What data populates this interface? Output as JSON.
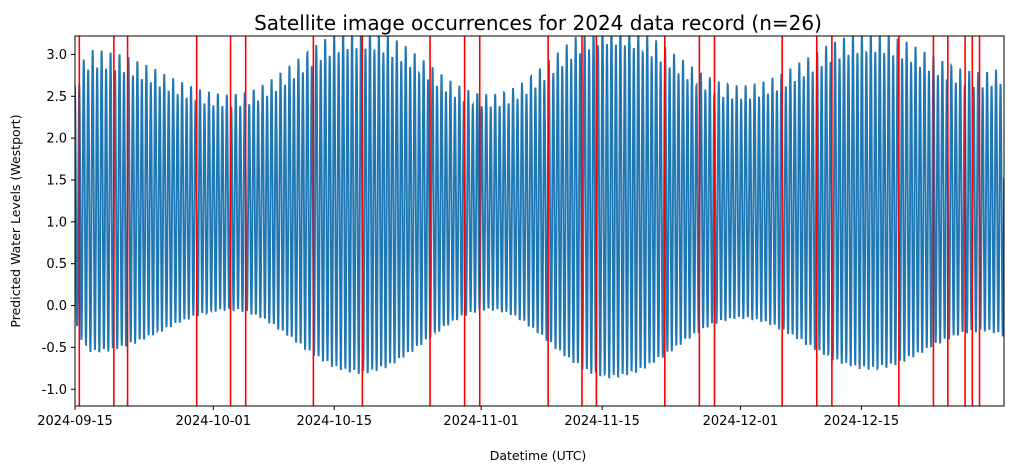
{
  "chart_data": {
    "type": "line",
    "title": "Satellite image occurrences for 2024 data record (n=26)",
    "xlabel": "Datetime (UTC)",
    "ylabel": "Predicted Water Levels (Westport)",
    "xlim": [
      "2024-09-15",
      "2024-12-31T12:00"
    ],
    "ylim": [
      -1.2,
      3.22
    ],
    "x_ticks": [
      "2024-09-15",
      "2024-10-01",
      "2024-10-15",
      "2024-11-01",
      "2024-11-15",
      "2024-12-01",
      "2024-12-15"
    ],
    "y_ticks": [
      -1.0,
      -0.5,
      0.0,
      0.5,
      1.0,
      1.5,
      2.0,
      2.5,
      3.0
    ],
    "series": [
      {
        "color": "#1f77b4",
        "mean_level": 1.2,
        "semidiurnal_period_hours": 12.42,
        "spring_tide_peaks": [
          "2024-09-17",
          "2024-10-18",
          "2024-11-16",
          "2024-12-16"
        ],
        "neap_tide_troughs": [
          "2024-10-03",
          "2024-11-02",
          "2024-12-01",
          "2024-12-29"
        ],
        "values": [
          {
            "x": "2024-09-15",
            "y": 2.3
          },
          {
            "x": "2024-09-17",
            "y": 2.75
          },
          {
            "x": "2024-09-17",
            "y": -0.65
          },
          {
            "x": "2024-09-20",
            "y": 2.75
          },
          {
            "x": "2024-09-21",
            "y": -0.7
          },
          {
            "x": "2024-10-03",
            "y": 2.4
          },
          {
            "x": "2024-10-03",
            "y": -0.3
          },
          {
            "x": "2024-10-18",
            "y": 2.92
          },
          {
            "x": "2024-10-18",
            "y": -0.92
          },
          {
            "x": "2024-11-02",
            "y": 2.3
          },
          {
            "x": "2024-11-02",
            "y": -0.4
          },
          {
            "x": "2024-11-16",
            "y": 3.05
          },
          {
            "x": "2024-11-16",
            "y": -0.97
          },
          {
            "x": "2024-12-01",
            "y": 2.35
          },
          {
            "x": "2024-12-01",
            "y": -0.55
          },
          {
            "x": "2024-12-16",
            "y": 3.02
          },
          {
            "x": "2024-12-16",
            "y": -0.87
          },
          {
            "x": "2024-12-29",
            "y": 2.6
          },
          {
            "x": "2024-12-29",
            "y": -0.45
          }
        ]
      }
    ],
    "event_lines": {
      "color": "#ff0000",
      "dates": [
        "2024-09-15T12:00",
        "2024-09-19T12:00",
        "2024-09-21T02:00",
        "2024-09-29T02:00",
        "2024-10-03T00:00",
        "2024-10-04T18:00",
        "2024-10-12T14:00",
        "2024-10-18T06:00",
        "2024-10-26T02:00",
        "2024-10-30T02:00",
        "2024-10-31T20:00",
        "2024-11-08T18:00",
        "2024-11-12T16:00",
        "2024-11-14T08:00",
        "2024-11-22T06:00",
        "2024-11-26T06:00",
        "2024-11-28T00:00",
        "2024-12-05T20:00",
        "2024-12-09T20:00",
        "2024-12-11T14:00",
        "2024-12-19T08:00",
        "2024-12-23T08:00",
        "2024-12-25T00:00",
        "2024-12-27T00:00",
        "2024-12-27T20:00",
        "2024-12-28T16:00"
      ]
    },
    "grid": false,
    "legend": "none"
  }
}
